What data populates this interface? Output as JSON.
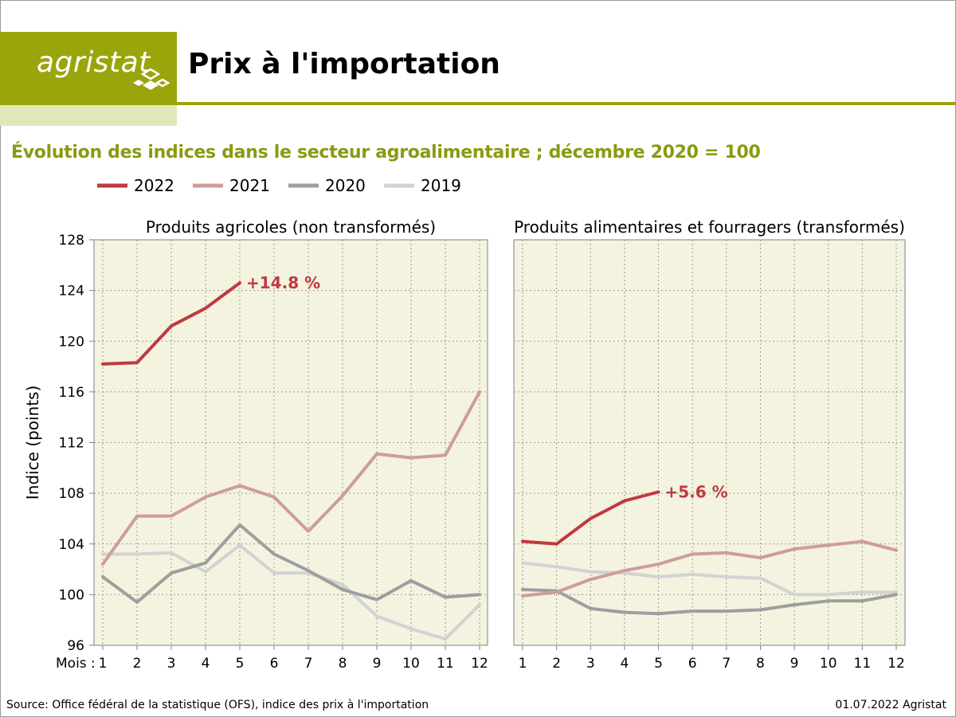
{
  "header": {
    "logo_text": "agristat",
    "title": "Prix à l'importation"
  },
  "subtitle": "Évolution des indices dans le secteur agroalimentaire ; décembre 2020 = 100",
  "footer": {
    "source": "Source: Office fédéral de la statistique (OFS), indice des prix à l'importation",
    "date": "01.07.2022 Agristat"
  },
  "colors": {
    "brand": "#9aa50c",
    "plot_bg": "#f3f3e0",
    "2022": "#c0393f",
    "2021": "#cf9c9b",
    "2020": "#9e9e9e",
    "2019": "#d2d2d2"
  },
  "chart_data": [
    {
      "type": "line",
      "title": "Produits agricoles (non transformés)",
      "ylabel": "Indice (points)",
      "xlabel": "Mois :",
      "x": [
        1,
        2,
        3,
        4,
        5,
        6,
        7,
        8,
        9,
        10,
        11,
        12
      ],
      "ylim": [
        96,
        128
      ],
      "yticks": [
        96,
        100,
        104,
        108,
        112,
        116,
        120,
        124,
        128
      ],
      "grid": true,
      "legend": "top",
      "series": [
        {
          "name": "2022",
          "values": [
            118.2,
            118.3,
            121.2,
            122.6,
            124.6,
            null,
            null,
            null,
            null,
            null,
            null,
            null
          ]
        },
        {
          "name": "2021",
          "values": [
            102.4,
            106.2,
            106.2,
            107.7,
            108.6,
            107.7,
            105.0,
            107.8,
            111.1,
            110.8,
            111.0,
            116.0
          ]
        },
        {
          "name": "2020",
          "values": [
            101.4,
            99.4,
            101.7,
            102.5,
            105.5,
            103.2,
            101.9,
            100.4,
            99.6,
            101.1,
            99.8,
            100.0
          ]
        },
        {
          "name": "2019",
          "values": [
            103.2,
            103.2,
            103.3,
            101.8,
            103.9,
            101.7,
            101.7,
            100.8,
            98.3,
            97.3,
            96.5,
            99.2
          ]
        }
      ],
      "annotations": [
        {
          "series": "2022",
          "x": 5,
          "text": "+14.8 %"
        }
      ]
    },
    {
      "type": "line",
      "title": "Produits alimentaires et fourragers (transformés)",
      "x": [
        1,
        2,
        3,
        4,
        5,
        6,
        7,
        8,
        9,
        10,
        11,
        12
      ],
      "ylim": [
        96,
        128
      ],
      "grid": true,
      "series": [
        {
          "name": "2022",
          "values": [
            104.2,
            104.0,
            106.0,
            107.4,
            108.1,
            null,
            null,
            null,
            null,
            null,
            null,
            null
          ]
        },
        {
          "name": "2021",
          "values": [
            99.9,
            100.2,
            101.2,
            101.9,
            102.4,
            103.2,
            103.3,
            102.9,
            103.6,
            103.9,
            104.2,
            103.5
          ]
        },
        {
          "name": "2020",
          "values": [
            100.4,
            100.3,
            98.9,
            98.6,
            98.5,
            98.7,
            98.7,
            98.8,
            99.2,
            99.5,
            99.5,
            100.0
          ]
        },
        {
          "name": "2019",
          "values": [
            102.5,
            102.2,
            101.8,
            101.7,
            101.4,
            101.6,
            101.4,
            101.3,
            100.0,
            100.0,
            100.2,
            100.2
          ]
        }
      ],
      "annotations": [
        {
          "series": "2022",
          "x": 5,
          "text": "+5.6 %"
        }
      ]
    }
  ]
}
